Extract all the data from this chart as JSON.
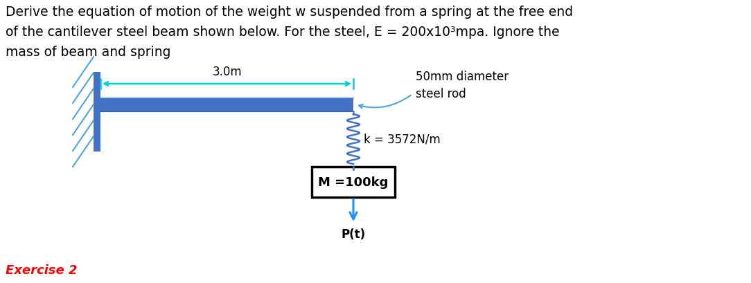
{
  "title_line1": "Derive the equation of motion of the weight w suspended from a spring at the free end",
  "title_line2": "of the cantilever steel beam shown below. For the steel, E = 200x10³mpa. Ignore the",
  "title_line3": "mass of beam and spring",
  "footer": "Exercise 2",
  "beam_color": "#4472C4",
  "wall_color": "#4472C4",
  "hatch_color": "#4FA3E0",
  "spring_color": "#4472C4",
  "dim_arrow_color": "#00CED1",
  "curved_arrow_color": "#4FA3E0",
  "force_arrow_color": "#1E90FF",
  "beam_label": "3.0m",
  "rod_label_line1": "50mm diameter",
  "rod_label_line2": "steel rod",
  "spring_label": "k = 3572N/m",
  "mass_label": "M =100kg",
  "force_label": "P(t)",
  "background_color": "#ffffff",
  "text_color": "#000000",
  "footer_color": "#ff0000",
  "title_fontsize": 13.5,
  "label_fontsize": 12
}
